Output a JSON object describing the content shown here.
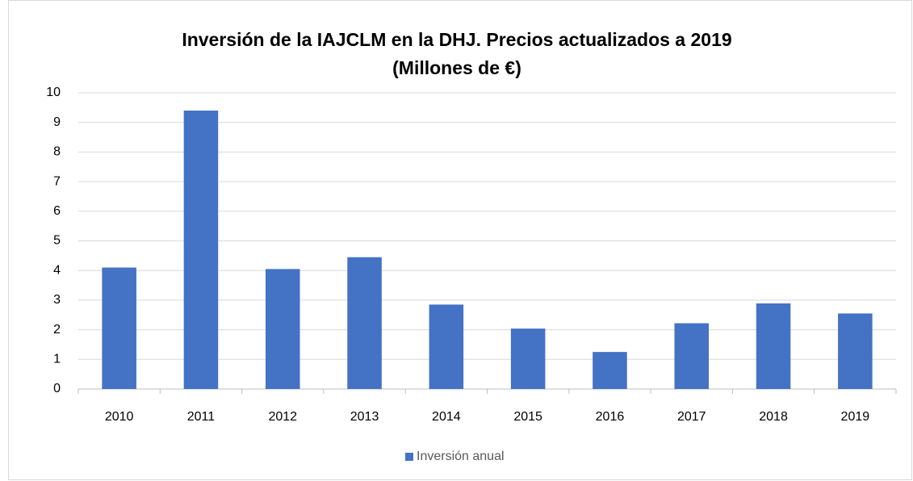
{
  "chart_data": {
    "type": "bar",
    "title": "Inversión de la IAJCLM en la DHJ. Precios actualizados a 2019",
    "subtitle": "(Millones de €)",
    "categories": [
      "2010",
      "2011",
      "2012",
      "2013",
      "2014",
      "2015",
      "2016",
      "2017",
      "2018",
      "2019"
    ],
    "series": [
      {
        "name": "Inversión anual",
        "color": "#4472c4",
        "values": [
          4.1,
          9.4,
          4.05,
          4.45,
          2.85,
          2.04,
          1.25,
          2.22,
          2.89,
          2.55
        ]
      }
    ],
    "ylim": [
      0,
      10
    ],
    "yticks": [
      0,
      1,
      2,
      3,
      4,
      5,
      6,
      7,
      8,
      9,
      10
    ],
    "grid": true,
    "legend": "bottom"
  }
}
